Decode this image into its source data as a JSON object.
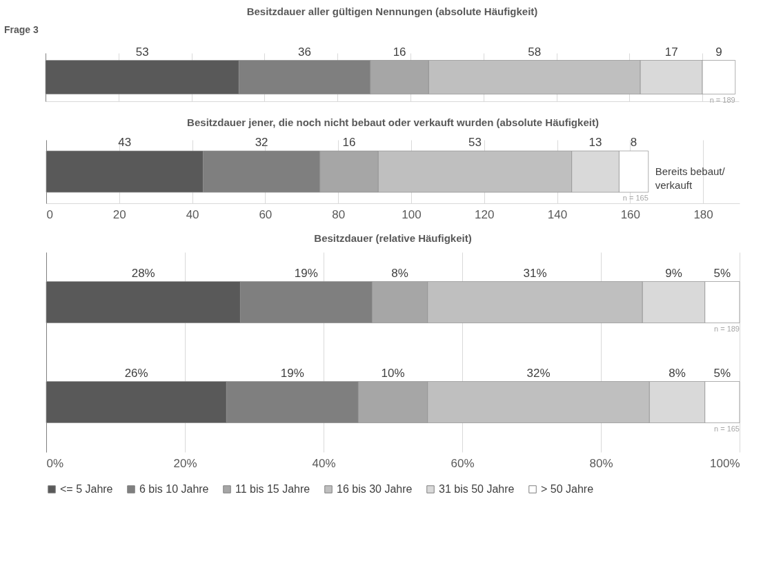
{
  "chart_data": [
    {
      "type": "bar",
      "orientation": "horizontal",
      "stacked": true,
      "title": "Besitzdauer aller gültigen Nennungen (absolute Häufigkeit)",
      "categories": [
        null
      ],
      "series": [
        {
          "color": "#595959",
          "values": [
            53
          ]
        },
        {
          "color": "#7f7f7f",
          "values": [
            36
          ]
        },
        {
          "color": "#a6a6a6",
          "values": [
            16
          ]
        },
        {
          "color": "#bfbfbf",
          "values": [
            58
          ]
        },
        {
          "color": "#d9d9d9",
          "values": [
            17
          ]
        },
        {
          "color": "#ffffff",
          "values": [
            9
          ]
        }
      ],
      "xlim": [
        0,
        190
      ],
      "xticks": [
        0,
        20,
        40,
        60,
        80,
        100,
        120,
        140,
        160,
        180
      ],
      "grid": "x",
      "tick_labels": false,
      "data_labels": true,
      "annotations": [
        "Frage 3",
        "n = 189"
      ]
    },
    {
      "type": "bar",
      "orientation": "horizontal",
      "stacked": true,
      "title": "Besitzdauer jener, die noch nicht bebaut oder verkauft wurden (absolute Häufigkeit)",
      "categories": [
        null
      ],
      "series": [
        {
          "color": "#595959",
          "values": [
            43
          ]
        },
        {
          "color": "#7f7f7f",
          "values": [
            32
          ]
        },
        {
          "color": "#a6a6a6",
          "values": [
            16
          ]
        },
        {
          "color": "#bfbfbf",
          "values": [
            53
          ]
        },
        {
          "color": "#d9d9d9",
          "values": [
            13
          ]
        },
        {
          "color": "#ffffff",
          "values": [
            8
          ]
        }
      ],
      "xlim": [
        0,
        190
      ],
      "xticks": [
        0,
        20,
        40,
        60,
        80,
        100,
        120,
        140,
        160,
        180
      ],
      "grid": "x",
      "tick_labels": "x",
      "data_labels": true,
      "annotations": [
        "Bereits bebaut/\nverkauft",
        "n = 165"
      ]
    },
    {
      "type": "bar",
      "orientation": "horizontal",
      "stacked": true,
      "title": "Besitzdauer (relative Häufigkeit)",
      "categories": [
        null,
        null
      ],
      "series": [
        {
          "name": "<= 5 Jahre",
          "color": "#595959",
          "values": [
            28,
            26
          ],
          "value_labels": [
            "28%",
            "26%"
          ]
        },
        {
          "name": "6 bis 10 Jahre",
          "color": "#7f7f7f",
          "values": [
            19,
            19
          ],
          "value_labels": [
            "19%",
            "19%"
          ]
        },
        {
          "name": "11 bis 15 Jahre",
          "color": "#a6a6a6",
          "values": [
            8,
            10
          ],
          "value_labels": [
            "8%",
            "10%"
          ]
        },
        {
          "name": "16 bis 30 Jahre",
          "color": "#bfbfbf",
          "values": [
            31,
            32
          ],
          "value_labels": [
            "31%",
            "32%"
          ]
        },
        {
          "name": "31 bis 50 Jahre",
          "color": "#d9d9d9",
          "values": [
            9,
            8
          ],
          "value_labels": [
            "9%",
            "8%"
          ]
        },
        {
          "name": "> 50 Jahre",
          "color": "#ffffff",
          "values": [
            5,
            5
          ],
          "value_labels": [
            "5%",
            "5%"
          ]
        }
      ],
      "xlim": [
        0,
        100
      ],
      "xticks": [
        {
          "value": 0,
          "label": "0%"
        },
        {
          "value": 20,
          "label": "20%"
        },
        {
          "value": 40,
          "label": "40%"
        },
        {
          "value": 60,
          "label": "60%"
        },
        {
          "value": 80,
          "label": "80%"
        },
        {
          "value": 100,
          "label": "100%"
        }
      ],
      "grid": "x",
      "tick_labels": "x",
      "legend": "bottom",
      "annotations": [
        "n = 189",
        "n = 165"
      ]
    }
  ]
}
